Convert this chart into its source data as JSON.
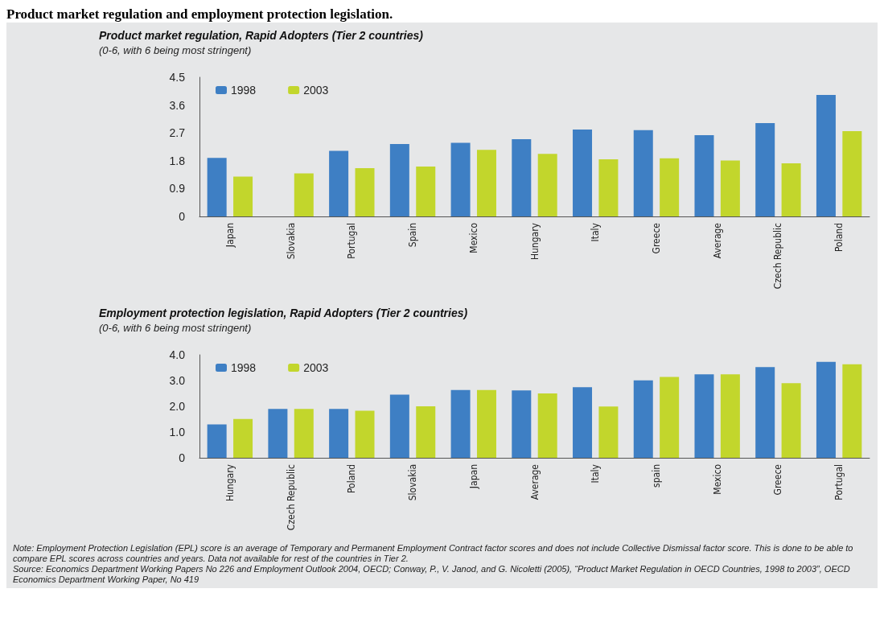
{
  "chart_data": [
    {
      "type": "bar",
      "title": "Product market regulation, Rapid Adopters (Tier 2 countries)",
      "subtitle": "(0-6, with 6 being most stringent)",
      "annotations": [
        "Product market regulation and employment protection legislation."
      ],
      "categories": [
        "Japan",
        "Slovakia",
        "Portugal",
        "Spain",
        "Mexico",
        "Hungary",
        "Italy",
        "Greece",
        "Average",
        "Czech Republic",
        "Poland"
      ],
      "series": [
        {
          "name": "1998",
          "color": "#3e7fc4",
          "values": [
            1.89,
            null,
            2.12,
            2.34,
            2.38,
            2.5,
            2.81,
            2.79,
            2.63,
            3.02,
            3.93
          ]
        },
        {
          "name": "2003",
          "color": "#c2d62c",
          "values": [
            1.29,
            1.39,
            1.56,
            1.61,
            2.15,
            2.02,
            1.85,
            1.88,
            1.81,
            1.72,
            2.76
          ]
        }
      ],
      "ylim": [
        0,
        4.5
      ],
      "yticks": [
        0,
        0.9,
        1.8,
        2.7,
        3.6,
        4.5
      ],
      "grid": false,
      "legend": "top left"
    },
    {
      "type": "bar",
      "title": "Employment protection legislation, Rapid Adopters (Tier 2 countries)",
      "subtitle": "(0-6, with 6 being most stringent)",
      "annotations": [
        "Note: Employment Protection Legislation (EPL) score is an average of Temporary and Permanent Employment Contract factor scores and does not include Collective Dismissal factor score. This is done to be able to compare EPL scores across countries and years. Data not available for rest of the countries in Tier 2.",
        "Source: Economics Department Working Papers No 226 and Employment Outlook 2004, OECD;  Conway, P., V. Janod, and G. Nicoletti (2005), “Product Market Regulation in OECD Countries, 1998 to 2003”, OECD Economics Department Working Paper, No 419"
      ],
      "categories": [
        "Hungary",
        "Czech Republic",
        "Poland",
        "Slovakia",
        "Japan",
        "Average",
        "Italy",
        "spain",
        "Mexico",
        "Greece",
        "Portugal"
      ],
      "series": [
        {
          "name": "1998",
          "color": "#3e7fc4",
          "values": [
            1.3,
            1.9,
            1.9,
            2.45,
            2.63,
            2.62,
            2.74,
            3.01,
            3.24,
            3.52,
            3.73
          ]
        },
        {
          "name": "2003",
          "color": "#c2d62c",
          "values": [
            1.51,
            1.9,
            1.83,
            2.0,
            2.63,
            2.5,
            1.99,
            3.14,
            3.24,
            2.9,
            3.63
          ]
        }
      ],
      "ylim": [
        0,
        4
      ],
      "yticks": [
        0,
        {
          "value": 1,
          "label": "1.0"
        },
        {
          "value": 2,
          "label": "2.0"
        },
        {
          "value": 3,
          "label": "3.0"
        },
        {
          "value": 4,
          "label": "4.0"
        }
      ],
      "grid": false,
      "legend": "top left"
    }
  ]
}
